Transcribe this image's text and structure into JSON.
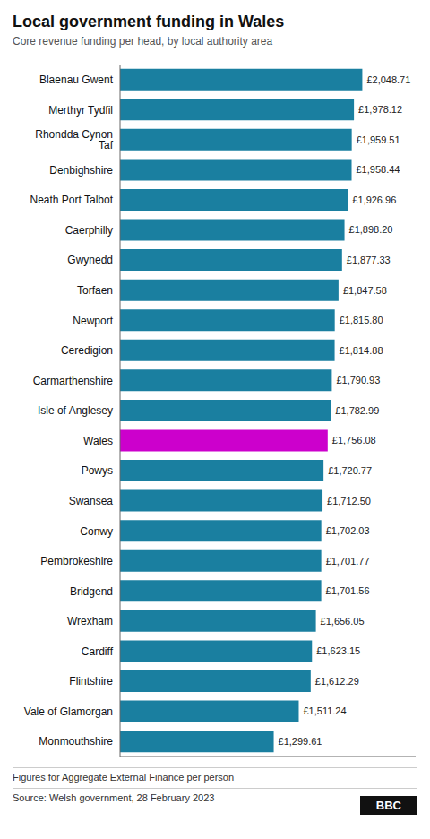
{
  "chart_data": {
    "type": "bar",
    "orientation": "horizontal",
    "title": "Local government funding in Wales",
    "subtitle": "Core revenue funding per head, by local authority area",
    "categories": [
      "Blaenau Gwent",
      "Merthyr Tydfil",
      "Rhondda Cynon Taf",
      "Denbighshire",
      "Neath Port Talbot",
      "Caerphilly",
      "Gwynedd",
      "Torfaen",
      "Newport",
      "Ceredigion",
      "Carmarthenshire",
      "Isle of Anglesey",
      "Wales",
      "Powys",
      "Swansea",
      "Conwy",
      "Pembrokeshire",
      "Bridgend",
      "Wrexham",
      "Cardiff",
      "Flintshire",
      "Vale of Glamorgan",
      "Monmouthshire"
    ],
    "values": [
      2048.71,
      1978.12,
      1959.51,
      1958.44,
      1926.96,
      1898.2,
      1877.33,
      1847.58,
      1815.8,
      1814.88,
      1790.93,
      1782.99,
      1756.08,
      1720.77,
      1712.5,
      1702.03,
      1701.77,
      1701.56,
      1656.05,
      1623.15,
      1612.29,
      1511.24,
      1299.61
    ],
    "value_labels": [
      "£2,048.71",
      "£1,978.12",
      "£1,959.51",
      "£1,958.44",
      "£1,926.96",
      "£1,898.20",
      "£1,877.33",
      "£1,847.58",
      "£1,815.80",
      "£1,814.88",
      "£1,790.93",
      "£1,782.99",
      "£1,756.08",
      "£1,720.77",
      "£1,712.50",
      "£1,702.03",
      "£1,701.77",
      "£1,701.56",
      "£1,656.05",
      "£1,623.15",
      "£1,612.29",
      "£1,511.24",
      "£1,299.61"
    ],
    "colors": [
      "#1a7fa0",
      "#1a7fa0",
      "#1a7fa0",
      "#1a7fa0",
      "#1a7fa0",
      "#1a7fa0",
      "#1a7fa0",
      "#1a7fa0",
      "#1a7fa0",
      "#1a7fa0",
      "#1a7fa0",
      "#1a7fa0",
      "#cc00cc",
      "#1a7fa0",
      "#1a7fa0",
      "#1a7fa0",
      "#1a7fa0",
      "#1a7fa0",
      "#1a7fa0",
      "#1a7fa0",
      "#1a7fa0",
      "#1a7fa0",
      "#1a7fa0"
    ],
    "xlim": [
      0,
      2500
    ],
    "grid": false,
    "data_labels": true,
    "tick_labels": "y",
    "footnote": "Figures for Aggregate External Finance per person",
    "source": "Source: Welsh government, 28 February 2023",
    "logo": "BBC"
  }
}
